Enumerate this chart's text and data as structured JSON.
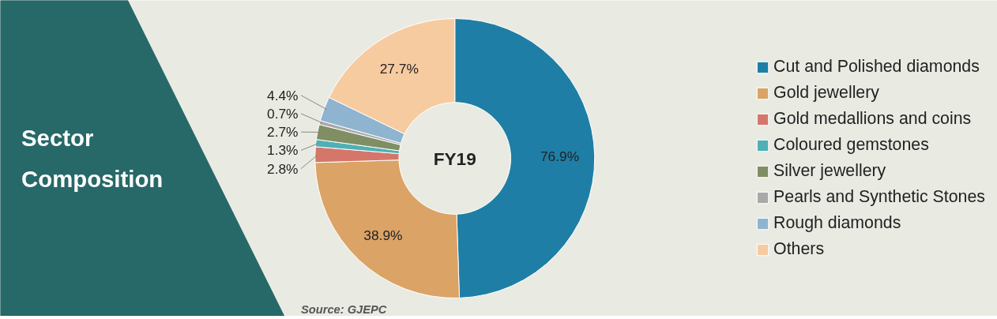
{
  "chart_data": {
    "type": "donut",
    "title": "Sector Composition",
    "categories": [
      "Cut and Polished diamonds",
      "Gold jewellery",
      "Gold medallions and coins",
      "Coloured gemstones",
      "Silver jewellery",
      "Pearls and Synthetic Stones",
      "Rough diamonds",
      "Others"
    ],
    "values": [
      76.9,
      38.9,
      2.8,
      1.3,
      2.7,
      0.7,
      4.4,
      27.7
    ],
    "value_labels": [
      "76.9%",
      "38.9%",
      "2.8%",
      "1.3%",
      "2.7%",
      "0.7%",
      "4.4%",
      "27.7%"
    ],
    "colors": [
      "#1f7ea5",
      "#dba365",
      "#d4776a",
      "#4fb0b5",
      "#7f8f63",
      "#a9a9a9",
      "#8fb4cf",
      "#f7cba0"
    ],
    "legend": "right",
    "annotations": [
      "FY19",
      "Source: GJEPC"
    ]
  }
}
